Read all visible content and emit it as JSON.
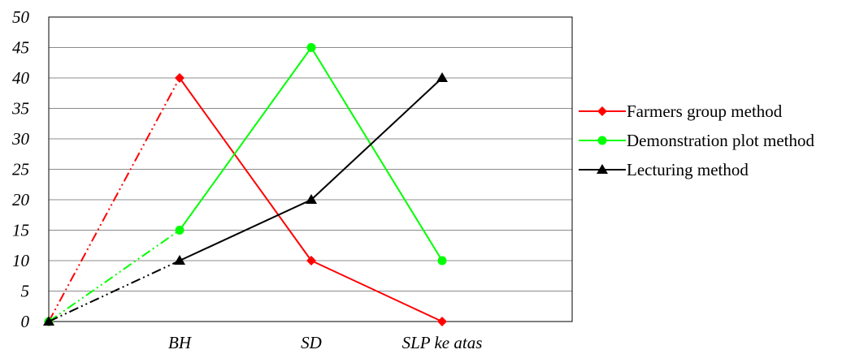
{
  "chart_data": {
    "type": "line",
    "title": "",
    "xlabel": "",
    "ylabel": "",
    "categories": [
      "",
      "BH",
      "SD",
      "SLP ke atas"
    ],
    "ylim": [
      0,
      50
    ],
    "yticks": [
      "0",
      "5",
      "10",
      "15",
      "20",
      "25",
      "30",
      "35",
      "40",
      "45",
      "50"
    ],
    "grid": true,
    "legend_position": "right",
    "series": [
      {
        "name": "Farmers group method",
        "values": [
          0,
          40,
          10,
          0
        ],
        "color": "#ff0000",
        "marker": "diamond",
        "first_segment_style": "dash-dot-dot"
      },
      {
        "name": "Demonstration plot method",
        "values": [
          0,
          15,
          45,
          10
        ],
        "color": "#00ff00",
        "marker": "circle",
        "first_segment_style": "dash-dot-dot"
      },
      {
        "name": "Lecturing method",
        "values": [
          0,
          10,
          20,
          40
        ],
        "color": "#000000",
        "marker": "triangle",
        "first_segment_style": "dash-dot-dot"
      }
    ]
  }
}
